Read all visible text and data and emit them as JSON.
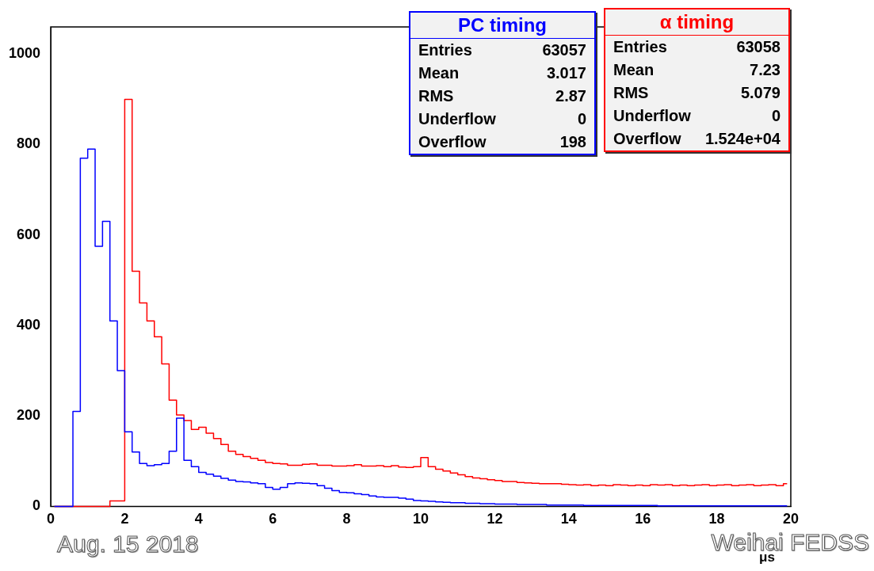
{
  "chart_data": {
    "type": "step",
    "xlabel": "μs",
    "legend": "top right",
    "x": [
      0.1,
      0.3,
      0.5,
      0.7,
      0.9,
      1.1,
      1.3,
      1.5,
      1.7,
      1.9,
      2.1,
      2.3,
      2.5,
      2.7,
      2.9,
      3.1,
      3.3,
      3.5,
      3.7,
      3.9,
      4.1,
      4.3,
      4.5,
      4.7,
      4.9,
      5.1,
      5.3,
      5.5,
      5.7,
      5.9,
      6.1,
      6.3,
      6.5,
      6.7,
      6.9,
      7.1,
      7.3,
      7.5,
      7.7,
      7.9,
      8.1,
      8.3,
      8.5,
      8.7,
      8.9,
      9.1,
      9.3,
      9.5,
      9.7,
      9.9,
      10.1,
      10.3,
      10.5,
      10.7,
      10.9,
      11.1,
      11.3,
      11.5,
      11.7,
      11.9,
      12.1,
      12.3,
      12.5,
      12.7,
      12.9,
      13.1,
      13.3,
      13.5,
      13.7,
      13.9,
      14.1,
      14.3,
      14.5,
      14.7,
      14.9,
      15.1,
      15.3,
      15.5,
      15.7,
      15.9,
      16.1,
      16.3,
      16.5,
      16.7,
      16.9,
      17.1,
      17.3,
      17.5,
      17.7,
      17.9,
      18.1,
      18.3,
      18.5,
      18.7,
      18.9,
      19.1,
      19.3,
      19.5,
      19.7,
      19.9
    ],
    "series": [
      {
        "name": "PC timing",
        "color": "#0000ff",
        "values": [
          0,
          0,
          0,
          210,
          770,
          790,
          575,
          630,
          410,
          300,
          165,
          120,
          95,
          90,
          92,
          95,
          122,
          195,
          102,
          88,
          75,
          71,
          67,
          62,
          58,
          55,
          54,
          52,
          50,
          42,
          38,
          42,
          50,
          52,
          51,
          50,
          46,
          40,
          35,
          31,
          30,
          28,
          26,
          23,
          21,
          20,
          20,
          18,
          16,
          13,
          12,
          11,
          10,
          9,
          8,
          8,
          7,
          7,
          6,
          6,
          5,
          5,
          5,
          4,
          4,
          4,
          4,
          3,
          3,
          3,
          3,
          3,
          2,
          2,
          2,
          2,
          2,
          2,
          2,
          2,
          2,
          2,
          1,
          1,
          1,
          1,
          1,
          1,
          1,
          1,
          1,
          1,
          1,
          1,
          1,
          1,
          1,
          1,
          1,
          1
        ]
      },
      {
        "name": "α timing",
        "color": "#ff0000",
        "values": [
          0,
          0,
          0,
          0,
          0,
          0,
          0,
          0,
          12,
          12,
          900,
          520,
          450,
          410,
          375,
          315,
          235,
          202,
          190,
          170,
          175,
          162,
          150,
          137,
          122,
          115,
          110,
          106,
          102,
          97,
          95,
          94,
          91,
          91,
          93,
          94,
          91,
          91,
          89,
          89,
          90,
          92,
          89,
          89,
          90,
          88,
          90,
          87,
          86,
          88,
          108,
          88,
          82,
          78,
          74,
          70,
          66,
          63,
          61,
          59,
          57,
          55,
          55,
          53,
          52,
          51,
          50,
          50,
          50,
          49,
          48,
          47,
          48,
          46,
          47,
          46,
          48,
          47,
          46,
          47,
          46,
          48,
          47,
          48,
          46,
          47,
          46,
          47,
          48,
          46,
          47,
          48,
          46,
          47,
          48,
          46,
          47,
          48,
          46,
          50
        ]
      }
    ],
    "xlim": [
      0,
      20
    ],
    "xticks": [
      0,
      2,
      4,
      6,
      8,
      10,
      12,
      14,
      16,
      18,
      20
    ],
    "ylim": [
      0,
      1060
    ],
    "yticks": [
      0,
      200,
      400,
      600,
      800,
      1000
    ],
    "annotations": [
      "Entries 63057",
      "Mean 3.017",
      "RMS 2.87",
      "Underflow 0",
      "Overflow 198",
      "Entries 63058",
      "Mean 7.23",
      "RMS 5.079",
      "Underflow 0",
      "Overflow 1.524e+04",
      "Aug. 15 2018",
      "Weihai FEDSS"
    ]
  }
}
